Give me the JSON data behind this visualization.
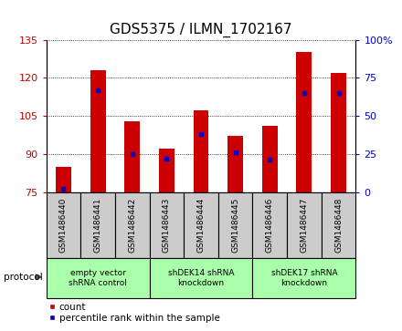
{
  "title": "GDS5375 / ILMN_1702167",
  "samples": [
    "GSM1486440",
    "GSM1486441",
    "GSM1486442",
    "GSM1486443",
    "GSM1486444",
    "GSM1486445",
    "GSM1486446",
    "GSM1486447",
    "GSM1486448"
  ],
  "counts": [
    85,
    123,
    103,
    92,
    107,
    97,
    101,
    130,
    122
  ],
  "percentile_ranks": [
    2,
    67,
    25,
    22,
    38,
    26,
    21,
    65,
    65
  ],
  "ylim_left": [
    75,
    135
  ],
  "ylim_right": [
    0,
    100
  ],
  "yticks_left": [
    75,
    90,
    105,
    120,
    135
  ],
  "yticks_right": [
    0,
    25,
    50,
    75,
    100
  ],
  "bar_color": "#cc0000",
  "bar_bottom": 75,
  "percentile_color": "#0000cc",
  "groups": [
    {
      "label": "empty vector\nshRNA control",
      "start": 0,
      "end": 3,
      "color": "#aaffaa"
    },
    {
      "label": "shDEK14 shRNA\nknockdown",
      "start": 3,
      "end": 6,
      "color": "#aaffaa"
    },
    {
      "label": "shDEK17 shRNA\nknockdown",
      "start": 6,
      "end": 9,
      "color": "#aaffaa"
    }
  ],
  "protocol_label": "protocol",
  "legend_count_label": "count",
  "legend_percentile_label": "percentile rank within the sample",
  "grid_color": "#000000",
  "tick_label_color_left": "#cc0000",
  "tick_label_color_right": "#0000cc",
  "bar_width": 0.45,
  "sample_area_color": "#cccccc",
  "border_color": "#000000",
  "title_fontsize": 11
}
